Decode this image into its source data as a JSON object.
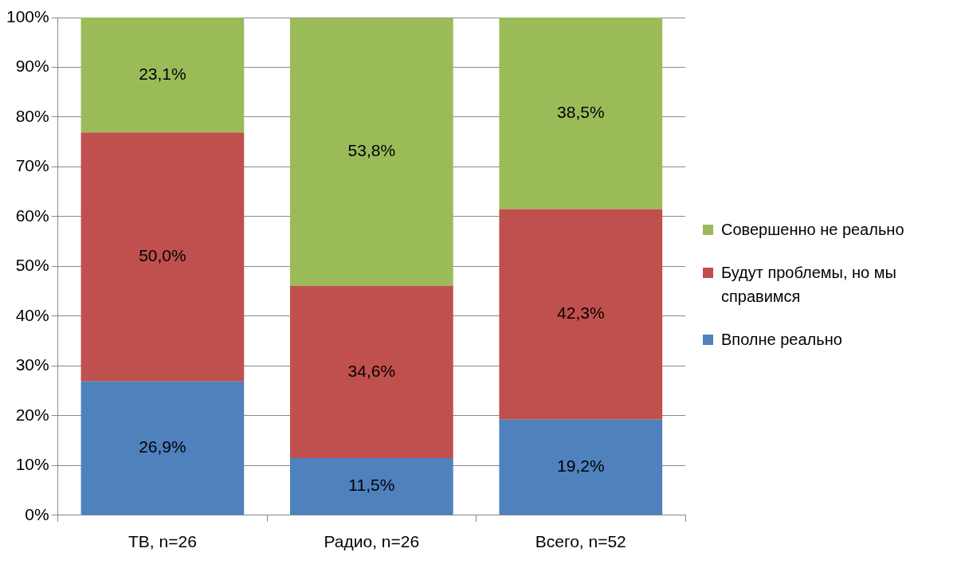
{
  "chart_data": {
    "type": "bar",
    "stacked": true,
    "categories": [
      "ТВ, n=26",
      "Радио, n=26",
      "Всего, n=52"
    ],
    "series": [
      {
        "name": "Вполне реально",
        "color": "#4f81bd",
        "values": [
          26.9,
          11.5,
          19.2
        ],
        "value_labels": [
          "26,9%",
          "11,5%",
          "19,2%"
        ]
      },
      {
        "name": "Будут проблемы, но мы справимся",
        "color": "#c0504d",
        "values": [
          50.0,
          34.6,
          42.3
        ],
        "value_labels": [
          "50,0%",
          "34,6%",
          "42,3%"
        ]
      },
      {
        "name": "Совершенно не реально",
        "color": "#9bbb59",
        "values": [
          23.1,
          53.8,
          38.5
        ],
        "value_labels": [
          "23,1%",
          "53,8%",
          "38,5%"
        ]
      }
    ],
    "ylim": [
      0,
      100
    ],
    "yticks": [
      {
        "value": 0,
        "label": "0%"
      },
      {
        "value": 10,
        "label": "10%"
      },
      {
        "value": 20,
        "label": "20%"
      },
      {
        "value": 30,
        "label": "30%"
      },
      {
        "value": 40,
        "label": "40%"
      },
      {
        "value": 50,
        "label": "50%"
      },
      {
        "value": 60,
        "label": "60%"
      },
      {
        "value": 70,
        "label": "70%"
      },
      {
        "value": 80,
        "label": "80%"
      },
      {
        "value": 90,
        "label": "90%"
      },
      {
        "value": 100,
        "label": "100%"
      }
    ],
    "grid": "y",
    "legend": "right"
  }
}
